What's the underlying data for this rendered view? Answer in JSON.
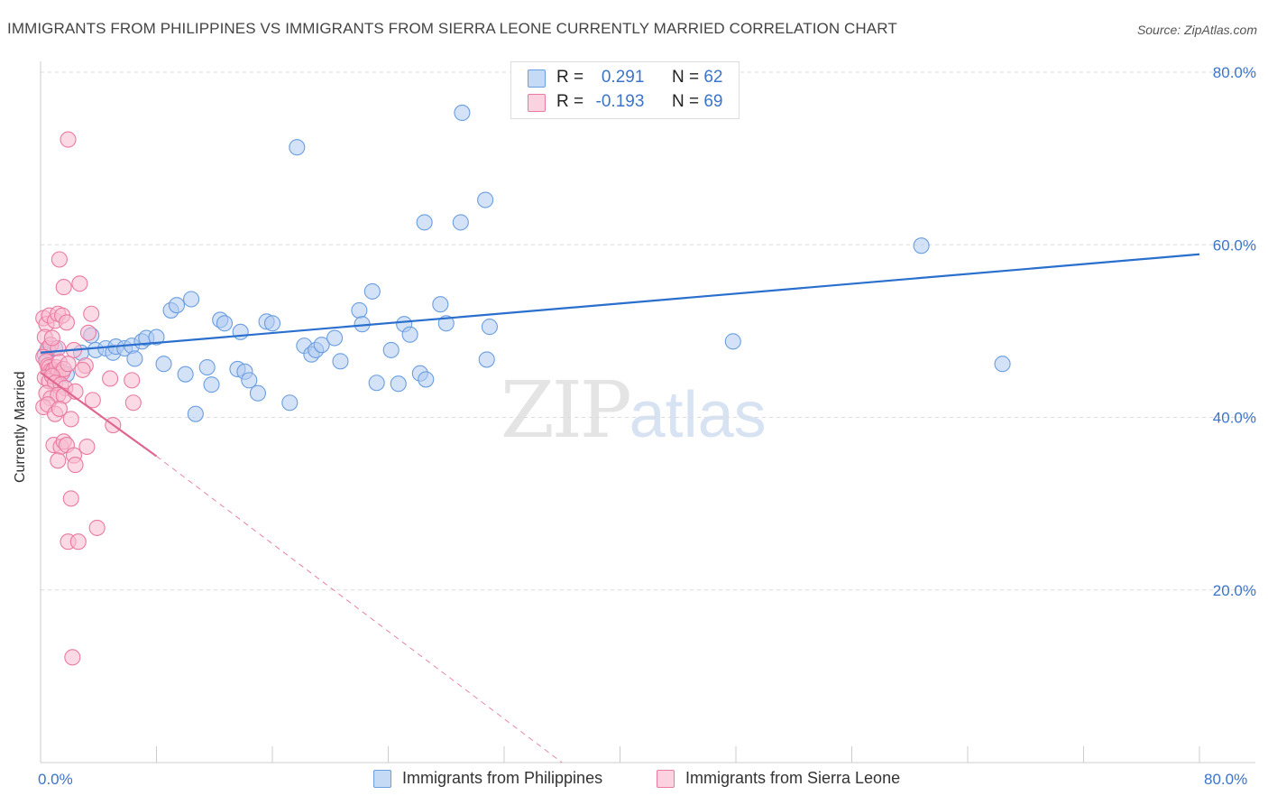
{
  "header": {
    "title": "IMMIGRANTS FROM PHILIPPINES VS IMMIGRANTS FROM SIERRA LEONE CURRENTLY MARRIED CORRELATION CHART",
    "source": "Source: ZipAtlas.com"
  },
  "watermark": {
    "zip": "ZIP",
    "atlas": "atlas"
  },
  "legend": {
    "rows": [
      {
        "r_label": "R =",
        "r_value": "0.291",
        "n_label": "N =",
        "n_value": "62",
        "color": "#aecbf0"
      },
      {
        "r_label": "R =",
        "r_value": "-0.193",
        "n_label": "N =",
        "n_value": "69",
        "color": "#f7bcd0"
      }
    ]
  },
  "bottom_legend": {
    "series1": "Immigrants from Philippines",
    "series2": "Immigrants from Sierra Leone"
  },
  "axes": {
    "x_min_label": "0.0%",
    "x_max_label": "80.0%",
    "y_ticks": [
      "20.0%",
      "40.0%",
      "60.0%",
      "80.0%"
    ],
    "ylabel": "Currently Married"
  },
  "chart_data": {
    "type": "scatter",
    "xlabel": "",
    "ylabel": "Currently Married",
    "xlim": [
      0,
      80
    ],
    "ylim": [
      0,
      80
    ],
    "y_ticks": [
      20,
      40,
      60,
      80
    ],
    "grid": true,
    "legend_position": "top-center",
    "series": [
      {
        "name": "Immigrants from Philippines",
        "color": "#6a9ee0",
        "fill": "#aecbf0",
        "trend": {
          "x": [
            0,
            80
          ],
          "y": [
            47.5,
            58.9
          ],
          "style": "solid",
          "color": "#2a6fce"
        },
        "points": [
          [
            0.5,
            47.8
          ],
          [
            1.0,
            48.0
          ],
          [
            1.8,
            45.0
          ],
          [
            3.5,
            49.5
          ],
          [
            2.8,
            47.5
          ],
          [
            3.8,
            47.8
          ],
          [
            4.5,
            48.0
          ],
          [
            5.0,
            47.5
          ],
          [
            5.2,
            48.2
          ],
          [
            5.8,
            48.0
          ],
          [
            6.3,
            48.3
          ],
          [
            6.5,
            46.8
          ],
          [
            7.0,
            48.8
          ],
          [
            7.3,
            49.2
          ],
          [
            8.0,
            49.3
          ],
          [
            8.5,
            46.2
          ],
          [
            9.0,
            52.4
          ],
          [
            9.4,
            53.0
          ],
          [
            10.0,
            45.0
          ],
          [
            10.4,
            53.7
          ],
          [
            10.7,
            40.4
          ],
          [
            11.5,
            45.8
          ],
          [
            11.8,
            43.8
          ],
          [
            12.4,
            51.3
          ],
          [
            12.7,
            50.9
          ],
          [
            13.6,
            45.6
          ],
          [
            13.8,
            49.9
          ],
          [
            14.1,
            45.3
          ],
          [
            14.4,
            44.3
          ],
          [
            15.0,
            42.8
          ],
          [
            15.6,
            51.1
          ],
          [
            16.0,
            50.9
          ],
          [
            17.2,
            41.7
          ],
          [
            18.2,
            48.3
          ],
          [
            18.7,
            47.3
          ],
          [
            19.0,
            47.8
          ],
          [
            19.4,
            48.4
          ],
          [
            20.3,
            49.2
          ],
          [
            20.7,
            46.5
          ],
          [
            22.0,
            52.4
          ],
          [
            22.2,
            50.8
          ],
          [
            22.9,
            54.6
          ],
          [
            23.2,
            44.0
          ],
          [
            24.2,
            47.8
          ],
          [
            24.7,
            43.9
          ],
          [
            25.1,
            50.8
          ],
          [
            25.5,
            49.6
          ],
          [
            26.2,
            45.1
          ],
          [
            26.6,
            44.4
          ],
          [
            27.6,
            53.1
          ],
          [
            28.0,
            50.9
          ],
          [
            30.8,
            46.7
          ],
          [
            31.0,
            50.5
          ],
          [
            17.7,
            71.3
          ],
          [
            29.1,
            75.3
          ],
          [
            26.5,
            62.6
          ],
          [
            29.0,
            62.6
          ],
          [
            30.7,
            65.2
          ],
          [
            60.8,
            59.9
          ],
          [
            47.8,
            48.8
          ],
          [
            66.4,
            46.2
          ],
          [
            0.3,
            47.3
          ]
        ]
      },
      {
        "name": "Immigrants from Sierra Leone",
        "color": "#ea7aa0",
        "fill": "#f7bcd0",
        "trend": {
          "x": [
            0,
            8.0
          ],
          "y": [
            45.2,
            35.5
          ],
          "style": "solid",
          "color": "#e0668f",
          "ext": {
            "x": [
              8.0,
              36.0
            ],
            "y": [
              35.5,
              0.0
            ],
            "style": "dashed"
          }
        },
        "points": [
          [
            0.2,
            51.5
          ],
          [
            0.4,
            50.8
          ],
          [
            0.6,
            51.8
          ],
          [
            1.0,
            51.2
          ],
          [
            1.2,
            52.0
          ],
          [
            1.5,
            51.8
          ],
          [
            1.8,
            51.0
          ],
          [
            0.3,
            49.3
          ],
          [
            0.5,
            48.0
          ],
          [
            0.7,
            48.4
          ],
          [
            1.2,
            48.0
          ],
          [
            0.2,
            47.0
          ],
          [
            0.4,
            46.5
          ],
          [
            0.5,
            46.0
          ],
          [
            0.6,
            45.8
          ],
          [
            0.7,
            45.4
          ],
          [
            0.8,
            45.2
          ],
          [
            0.9,
            45.5
          ],
          [
            1.0,
            45.1
          ],
          [
            1.1,
            45.8
          ],
          [
            1.2,
            45.0
          ],
          [
            1.3,
            46.4
          ],
          [
            1.5,
            45.2
          ],
          [
            1.6,
            45.6
          ],
          [
            0.3,
            44.6
          ],
          [
            0.6,
            44.2
          ],
          [
            0.8,
            44.8
          ],
          [
            1.0,
            44.0
          ],
          [
            1.4,
            43.8
          ],
          [
            1.7,
            43.4
          ],
          [
            0.4,
            42.8
          ],
          [
            0.7,
            42.2
          ],
          [
            1.2,
            42.6
          ],
          [
            1.6,
            42.5
          ],
          [
            2.4,
            43.0
          ],
          [
            0.2,
            41.2
          ],
          [
            0.5,
            41.5
          ],
          [
            1.0,
            40.4
          ],
          [
            1.3,
            41.0
          ],
          [
            2.1,
            39.8
          ],
          [
            0.9,
            36.8
          ],
          [
            1.4,
            36.6
          ],
          [
            1.6,
            37.2
          ],
          [
            1.8,
            36.8
          ],
          [
            1.2,
            35.0
          ],
          [
            2.3,
            35.6
          ],
          [
            2.4,
            34.5
          ],
          [
            3.2,
            36.6
          ],
          [
            2.1,
            30.6
          ],
          [
            3.9,
            27.2
          ],
          [
            1.9,
            25.6
          ],
          [
            2.6,
            25.6
          ],
          [
            2.2,
            12.2
          ],
          [
            1.9,
            72.2
          ],
          [
            1.3,
            58.3
          ],
          [
            1.6,
            55.1
          ],
          [
            2.7,
            55.5
          ],
          [
            3.5,
            52.0
          ],
          [
            3.3,
            49.8
          ],
          [
            3.6,
            42.0
          ],
          [
            4.8,
            44.5
          ],
          [
            6.3,
            44.3
          ],
          [
            6.4,
            41.7
          ],
          [
            5.0,
            39.1
          ],
          [
            3.1,
            46.0
          ],
          [
            2.9,
            45.5
          ],
          [
            2.3,
            47.8
          ],
          [
            0.8,
            49.2
          ],
          [
            1.9,
            46.2
          ]
        ]
      }
    ]
  }
}
